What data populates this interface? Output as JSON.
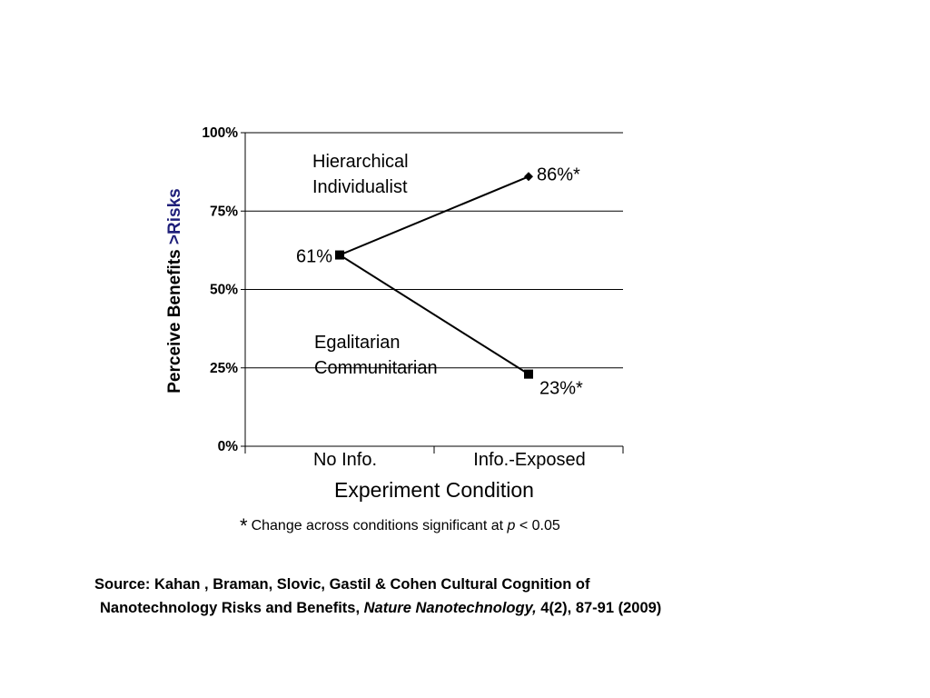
{
  "chart_data": {
    "type": "line",
    "title": "",
    "xlabel": "Experiment Condition",
    "ylabel": {
      "main": "Perceive Benefits ",
      "gt": ">",
      "risks": "Risks"
    },
    "ylim": [
      0,
      100
    ],
    "yticks": [
      "0%",
      "25%",
      "50%",
      "75%",
      "100%"
    ],
    "ytick_values": [
      0,
      25,
      50,
      75,
      100
    ],
    "categories": [
      "No Info.",
      "Info.-Exposed"
    ],
    "grid": true,
    "series": [
      {
        "name_lines": [
          "Hierarchical",
          "Individualist"
        ],
        "values": [
          61,
          86
        ],
        "marker": "diamond",
        "point_labels": [
          "61%",
          "86%*"
        ]
      },
      {
        "name_lines": [
          "Egalitarian",
          "Communitarian"
        ],
        "values": [
          61,
          23
        ],
        "marker": "square",
        "point_labels": [
          "",
          "23%*"
        ]
      }
    ],
    "colors": {
      "line": "#000000",
      "grid": "#000000",
      "risks": "#1f1f7a"
    }
  },
  "note": {
    "star": "*",
    "text": "Change across conditions significant at ",
    "p": "p",
    "tail": " < 0.05"
  },
  "source": {
    "line1": "Source: Kahan , Braman, Slovic, Gastil & Cohen Cultural Cognition of",
    "line2_prefix": "Nanotechnology Risks and Benefits, ",
    "journal": "Nature Nanotechnology,",
    "line2_suffix": " 4(2), 87-91 (2009)"
  }
}
